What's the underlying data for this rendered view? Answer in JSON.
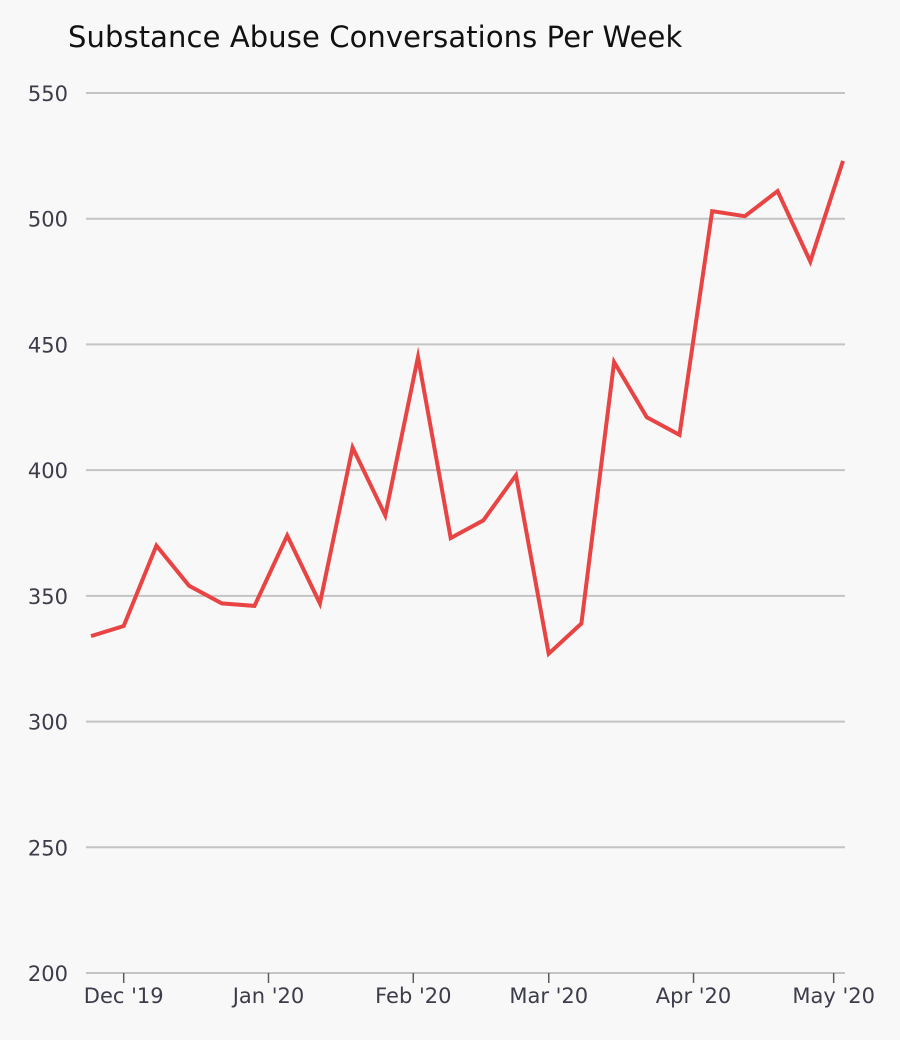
{
  "chart_data": {
    "type": "line",
    "title": "Substance Abuse Conversations Per Week",
    "xlabel": "",
    "ylabel": "",
    "ylim": [
      200,
      550
    ],
    "yticks": [
      200,
      250,
      300,
      350,
      400,
      450,
      500,
      550
    ],
    "xlim": [
      "2019-11-24",
      "2020-05-03"
    ],
    "xticks": [
      {
        "date": "2019-12-01",
        "label": "Dec '19"
      },
      {
        "date": "2020-01-01",
        "label": "Jan '20"
      },
      {
        "date": "2020-02-01",
        "label": "Feb '20"
      },
      {
        "date": "2020-03-01",
        "label": "Mar '20"
      },
      {
        "date": "2020-04-01",
        "label": "Apr '20"
      },
      {
        "date": "2020-05-01",
        "label": "May '20"
      }
    ],
    "grid": "horizontal",
    "line_color": "#e84444",
    "grid_color": "#c4c4c4",
    "series": [
      {
        "points": [
          [
            "2019-11-24",
            334
          ],
          [
            "2019-12-01",
            338
          ],
          [
            "2019-12-08",
            370
          ],
          [
            "2019-12-15",
            354
          ],
          [
            "2019-12-22",
            347
          ],
          [
            "2019-12-29",
            346
          ],
          [
            "2020-01-05",
            374
          ],
          [
            "2020-01-12",
            347
          ],
          [
            "2020-01-19",
            409
          ],
          [
            "2020-01-26",
            382
          ],
          [
            "2020-02-02",
            445
          ],
          [
            "2020-02-09",
            373
          ],
          [
            "2020-02-16",
            380
          ],
          [
            "2020-02-23",
            398
          ],
          [
            "2020-03-01",
            327
          ],
          [
            "2020-03-08",
            339
          ],
          [
            "2020-03-15",
            443
          ],
          [
            "2020-03-22",
            421
          ],
          [
            "2020-03-29",
            414
          ],
          [
            "2020-04-05",
            503
          ],
          [
            "2020-04-12",
            501
          ],
          [
            "2020-04-19",
            511
          ],
          [
            "2020-04-26",
            483
          ],
          [
            "2020-05-03",
            523
          ]
        ]
      }
    ]
  }
}
